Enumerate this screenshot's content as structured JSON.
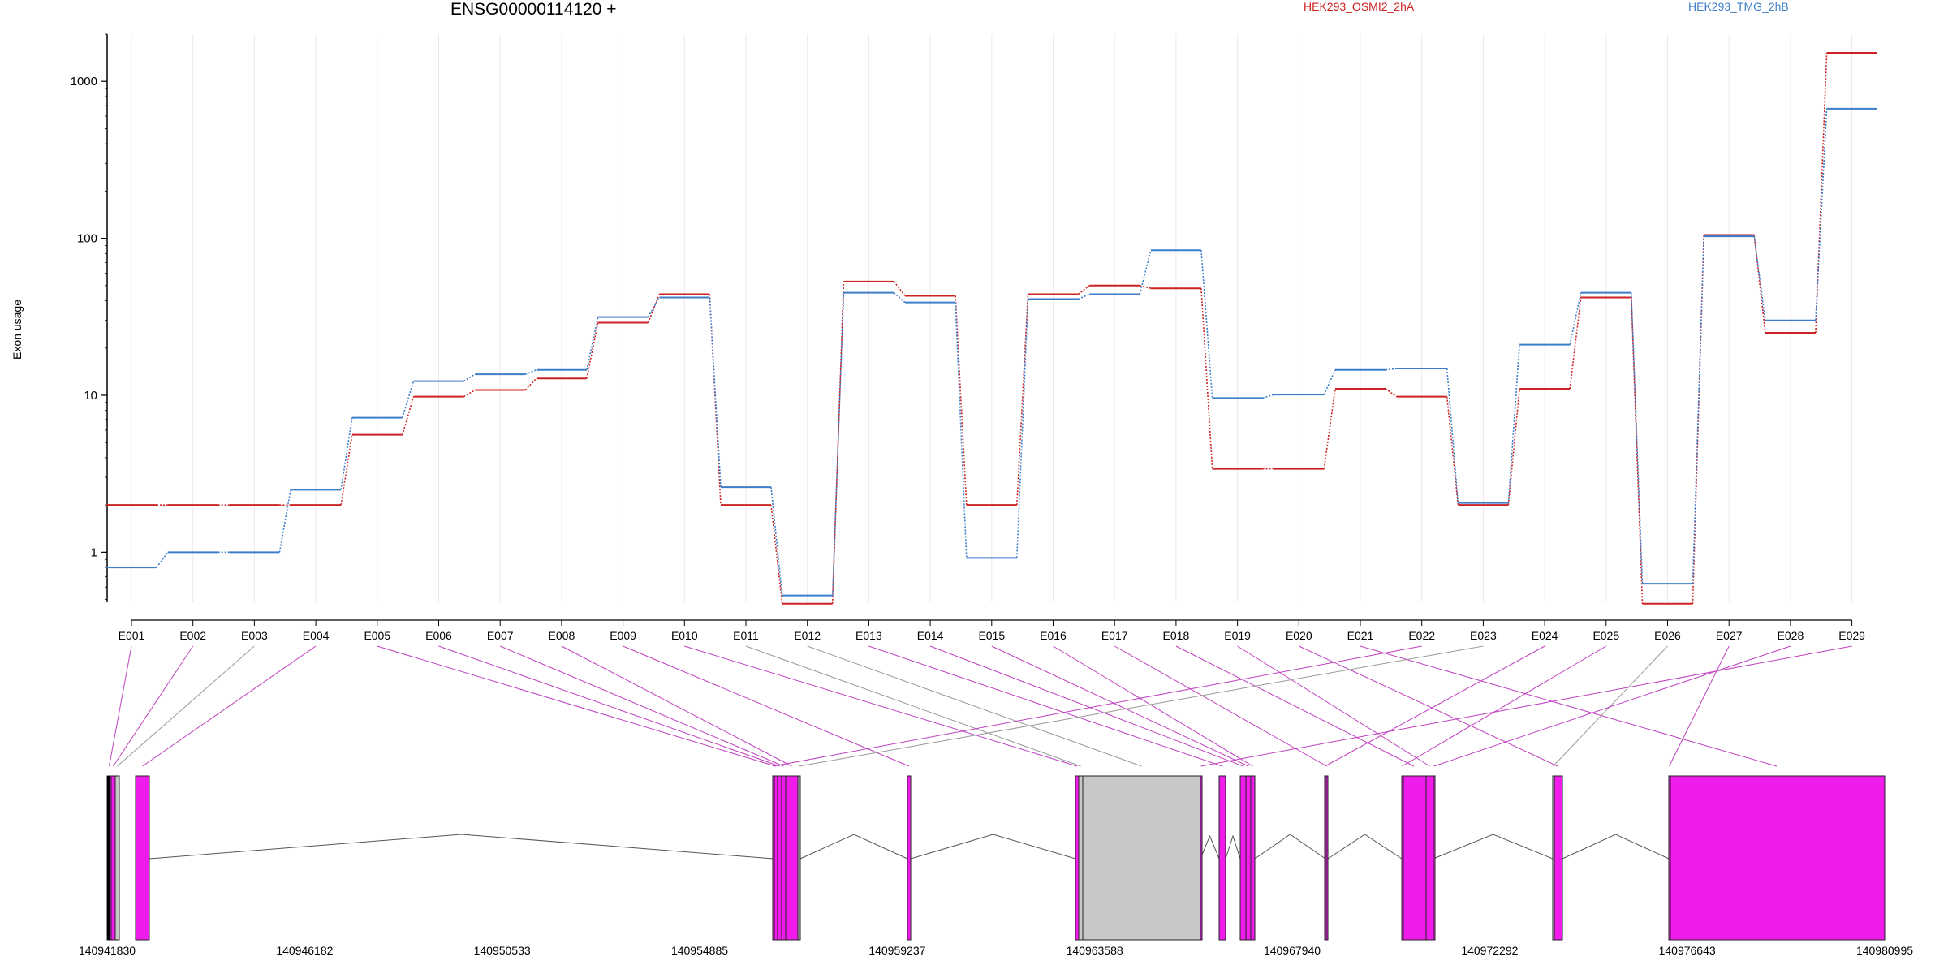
{
  "chart_data": {
    "type": "line",
    "title": "ENSG00000114120 +",
    "ylabel": "Exon usage",
    "yscale": "log",
    "ylim": [
      0.48,
      2000
    ],
    "yticks": [
      "1",
      "10",
      "100",
      "1000"
    ],
    "grid": "vertical",
    "categories": [
      "E001",
      "E002",
      "E003",
      "E004",
      "E005",
      "E006",
      "E007",
      "E008",
      "E009",
      "E010",
      "E011",
      "E012",
      "E013",
      "E014",
      "E015",
      "E016",
      "E017",
      "E018",
      "E019",
      "E020",
      "E021",
      "E022",
      "E023",
      "E024",
      "E025",
      "E026",
      "E027",
      "E028",
      "E029"
    ],
    "series": [
      {
        "name": "HEK293_OSMI2_2hA",
        "color": "#cc2222",
        "values": [
          2.0,
          2.0,
          2.0,
          2.0,
          5.6,
          9.8,
          10.8,
          12.8,
          29,
          44,
          2.0,
          0.47,
          53,
          43,
          2.0,
          44,
          50,
          48,
          3.4,
          3.4,
          11,
          9.8,
          2.0,
          11,
          42,
          0.47,
          105,
          25,
          1520
        ]
      },
      {
        "name": "HEK293_TMG_2hB",
        "color": "#3d7ec9",
        "values": [
          0.8,
          1.0,
          1.0,
          2.5,
          7.2,
          12.3,
          13.6,
          14.5,
          31.5,
          42,
          2.6,
          0.53,
          45,
          39,
          0.92,
          41,
          44,
          84,
          9.6,
          10.1,
          14.5,
          14.8,
          2.06,
          21,
          45,
          0.63,
          103,
          30,
          670
        ]
      }
    ],
    "genomic_ticks": [
      "140941830",
      "140946182",
      "140950533",
      "140954885",
      "140959237",
      "140963588",
      "140967940",
      "140972292",
      "140976643",
      "140980995"
    ],
    "gene_model": {
      "exon_color_significant": "#f01cec",
      "exon_color_normal": "#c8c8c8",
      "exon_colors": [
        "#f01cec",
        "#f01cec",
        "#c8c8c8",
        "#f01cec",
        "#f01cec",
        "#f01cec",
        "#f01cec",
        "#f01cec",
        "#f01cec",
        "#f01cec",
        "#c8c8c8",
        "#c8c8c8",
        "#f01cec",
        "#f01cec",
        "#f01cec",
        "#f01cec",
        "#f01cec",
        "#f01cec",
        "#f01cec",
        "#f01cec",
        "#f01cec",
        "#f01cec",
        "#c8c8c8",
        "#f01cec",
        "#f01cec",
        "#c8c8c8",
        "#f01cec",
        "#f01cec",
        "#f01cec"
      ]
    }
  }
}
